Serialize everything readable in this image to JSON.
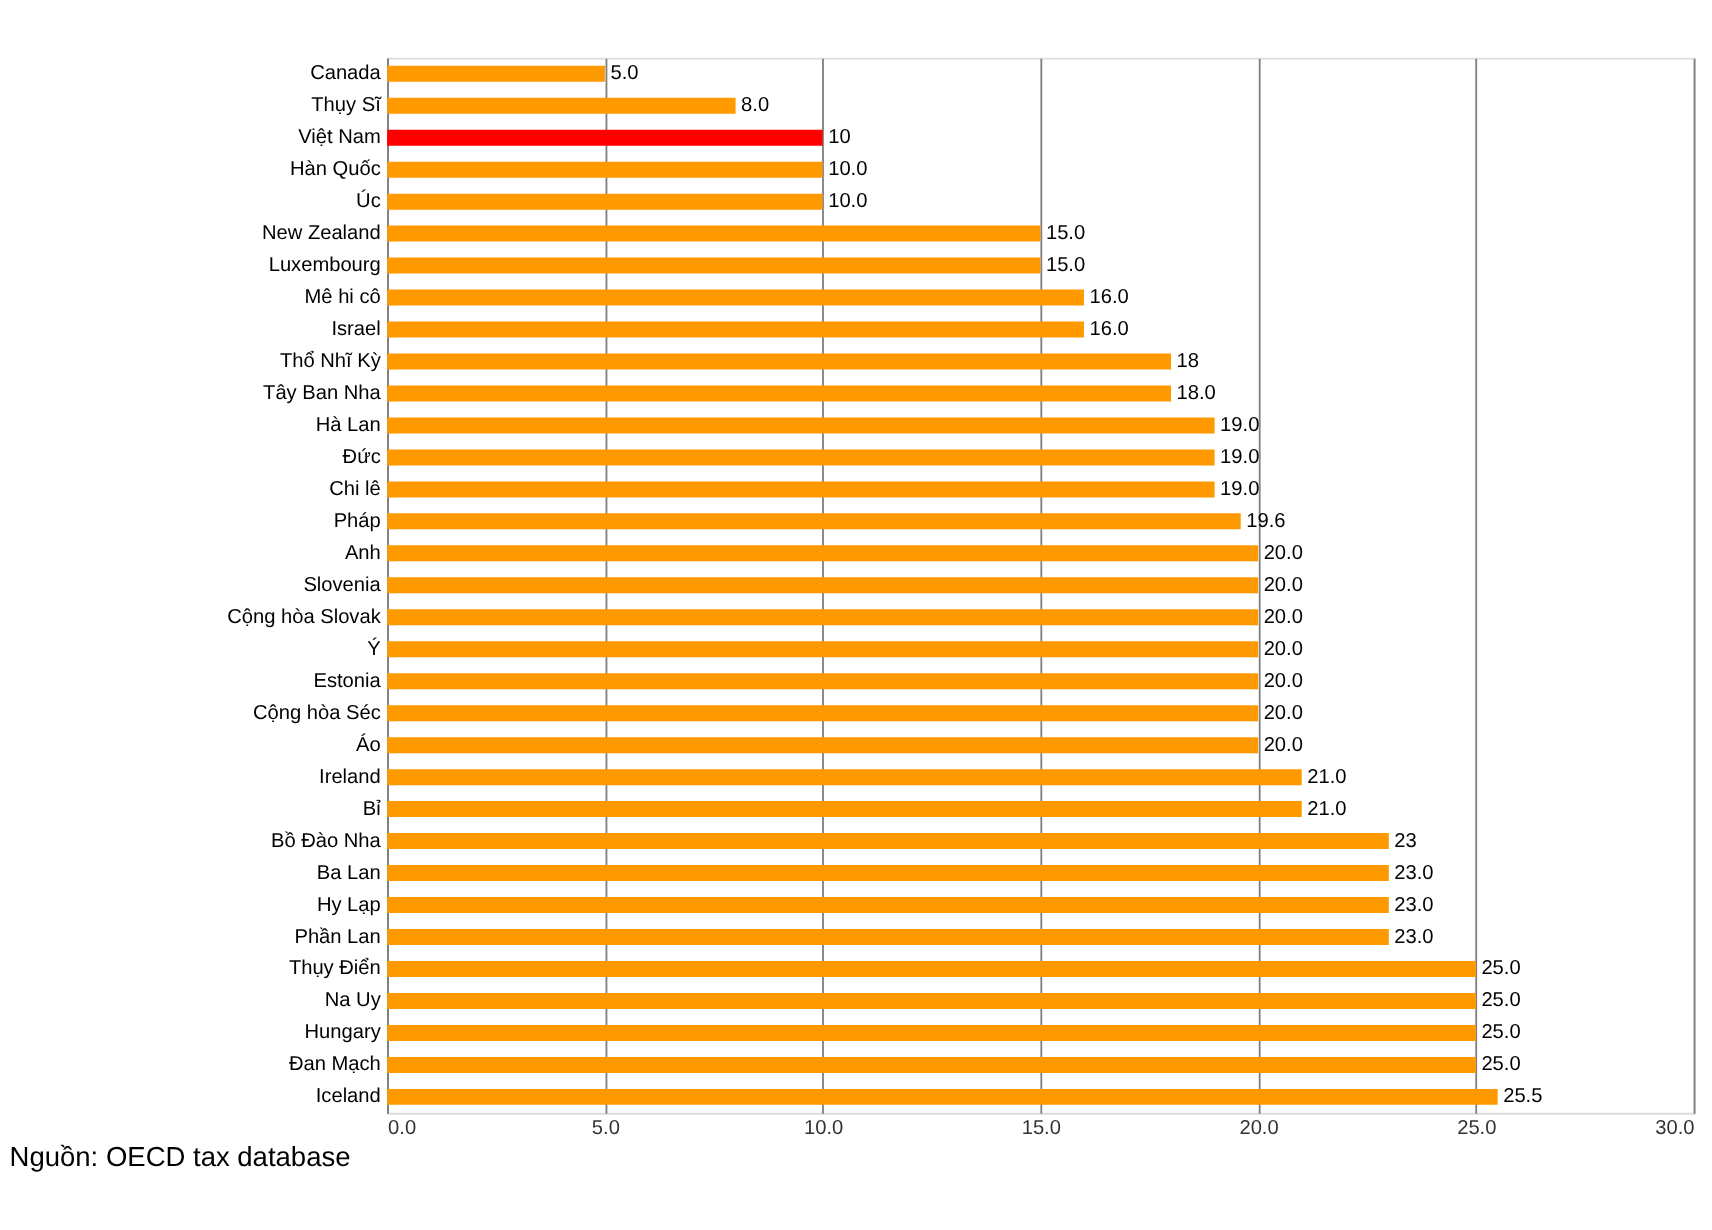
{
  "chart_data": {
    "type": "bar",
    "orientation": "horizontal",
    "categories": [
      "Canada",
      "Thụy Sĩ",
      "Việt Nam",
      "Hàn Quốc",
      "Úc",
      "New Zealand",
      "Luxembourg",
      "Mê hi cô",
      "Israel",
      "Thổ Nhĩ Kỳ",
      "Tây Ban Nha",
      "Hà Lan",
      "Đức",
      "Chi lê",
      "Pháp",
      "Anh",
      "Slovenia",
      "Cộng hòa Slovak",
      "Ý",
      "Estonia",
      "Cộng hòa Séc",
      "Áo",
      "Ireland",
      "Bỉ",
      "Bồ Đào Nha",
      "Ba Lan",
      "Hy Lạp",
      "Phần Lan",
      "Thụy Điển",
      "Na Uy",
      "Hungary",
      "Đan Mạch",
      "Iceland"
    ],
    "values": [
      5.0,
      8.0,
      10,
      10.0,
      10.0,
      15.0,
      15.0,
      16.0,
      16.0,
      18,
      18.0,
      19.0,
      19.0,
      19.0,
      19.6,
      20.0,
      20.0,
      20.0,
      20.0,
      20.0,
      20.0,
      20.0,
      21.0,
      21.0,
      23,
      23.0,
      23.0,
      23.0,
      25.0,
      25.0,
      25.0,
      25.0,
      25.5
    ],
    "value_labels": [
      "5.0",
      "8.0",
      "10",
      "10.0",
      "10.0",
      "15.0",
      "15.0",
      "16.0",
      "16.0",
      "18",
      "18.0",
      "19.0",
      "19.0",
      "19.0",
      "19.6",
      "20.0",
      "20.0",
      "20.0",
      "20.0",
      "20.0",
      "20.0",
      "20.0",
      "21.0",
      "21.0",
      "23",
      "23.0",
      "23.0",
      "23.0",
      "25.0",
      "25.0",
      "25.0",
      "25.0",
      "25.5"
    ],
    "colors": [
      "#ff9900",
      "#ff9900",
      "#ff0000",
      "#ff9900",
      "#ff9900",
      "#ff9900",
      "#ff9900",
      "#ff9900",
      "#ff9900",
      "#ff9900",
      "#ff9900",
      "#ff9900",
      "#ff9900",
      "#ff9900",
      "#ff9900",
      "#ff9900",
      "#ff9900",
      "#ff9900",
      "#ff9900",
      "#ff9900",
      "#ff9900",
      "#ff9900",
      "#ff9900",
      "#ff9900",
      "#ff9900",
      "#ff9900",
      "#ff9900",
      "#ff9900",
      "#ff9900",
      "#ff9900",
      "#ff9900",
      "#ff9900",
      "#ff9900"
    ],
    "xlim": [
      0,
      30
    ],
    "xticks": [
      {
        "value": 0,
        "label": "0.0"
      },
      {
        "value": 5,
        "label": "5.0"
      },
      {
        "value": 10,
        "label": "10.0"
      },
      {
        "value": 15,
        "label": "15.0"
      },
      {
        "value": 20,
        "label": "20.0"
      },
      {
        "value": 25,
        "label": "25.0"
      },
      {
        "value": 30,
        "label": "30.0"
      }
    ],
    "grid": "x",
    "annotations": [
      "Nguồn: OECD tax database"
    ]
  }
}
